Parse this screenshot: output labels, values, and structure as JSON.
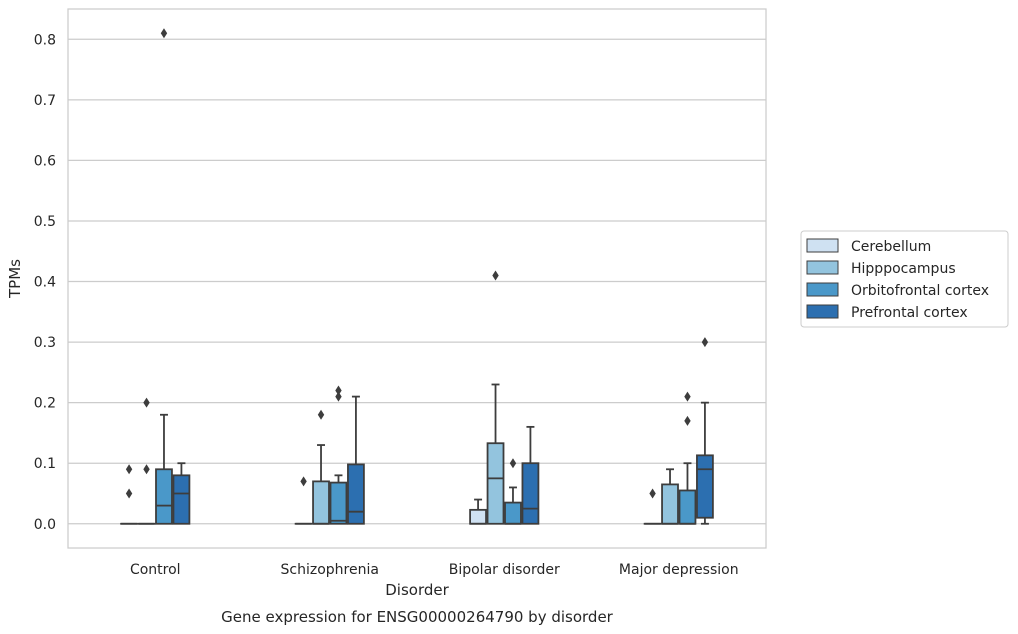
{
  "chart_data": {
    "type": "box",
    "xlabel": "Disorder",
    "ylabel": "TPMs",
    "caption": "Gene expression for ENSG00000264790 by disorder",
    "ylim": [
      -0.04,
      0.85
    ],
    "yticks": [
      "0.0",
      "0.1",
      "0.2",
      "0.3",
      "0.4",
      "0.5",
      "0.6",
      "0.7",
      "0.8"
    ],
    "grid": "horizontal",
    "legend_position": "right",
    "categories": [
      "Control",
      "Schizophrenia",
      "Bipolar disorder",
      "Major depression"
    ],
    "series": [
      {
        "name": "Cerebellum",
        "color": "#cfe1f2",
        "boxes": [
          {
            "min": 0,
            "q1": 0,
            "median": 0,
            "q3": 0,
            "max": 0,
            "outliers": [
              0.05,
              0.09
            ]
          },
          {
            "min": 0,
            "q1": 0,
            "median": 0,
            "q3": 0,
            "max": 0,
            "outliers": [
              0.07
            ]
          },
          {
            "min": 0,
            "q1": 0,
            "median": 0,
            "q3": 0.023,
            "max": 0.04,
            "outliers": []
          },
          {
            "min": 0,
            "q1": 0,
            "median": 0,
            "q3": 0,
            "max": 0,
            "outliers": [
              0.05
            ]
          }
        ]
      },
      {
        "name": "Hipppocampus",
        "color": "#93c4de",
        "boxes": [
          {
            "min": 0,
            "q1": 0,
            "median": 0,
            "q3": 0,
            "max": 0,
            "outliers": [
              0.09,
              0.2
            ]
          },
          {
            "min": 0,
            "q1": 0,
            "median": 0,
            "q3": 0.07,
            "max": 0.13,
            "outliers": [
              0.18
            ]
          },
          {
            "min": 0,
            "q1": 0,
            "median": 0.075,
            "q3": 0.133,
            "max": 0.23,
            "outliers": [
              0.41
            ]
          },
          {
            "min": 0,
            "q1": 0,
            "median": 0,
            "q3": 0.065,
            "max": 0.09,
            "outliers": []
          }
        ]
      },
      {
        "name": "Orbitofrontal cortex",
        "color": "#4a98c9",
        "boxes": [
          {
            "min": 0,
            "q1": 0,
            "median": 0.03,
            "q3": 0.09,
            "max": 0.18,
            "outliers": [
              0.81
            ]
          },
          {
            "min": 0,
            "q1": 0,
            "median": 0.005,
            "q3": 0.068,
            "max": 0.08,
            "outliers": [
              0.21,
              0.22
            ]
          },
          {
            "min": 0,
            "q1": 0,
            "median": 0,
            "q3": 0.035,
            "max": 0.06,
            "outliers": [
              0.1
            ]
          },
          {
            "min": 0,
            "q1": 0,
            "median": 0,
            "q3": 0.055,
            "max": 0.1,
            "outliers": [
              0.17,
              0.21
            ]
          }
        ]
      },
      {
        "name": "Prefrontal cortex",
        "color": "#2c6fb0",
        "boxes": [
          {
            "min": 0,
            "q1": 0,
            "median": 0.05,
            "q3": 0.08,
            "max": 0.1,
            "outliers": []
          },
          {
            "min": 0,
            "q1": 0,
            "median": 0.02,
            "q3": 0.098,
            "max": 0.21,
            "outliers": []
          },
          {
            "min": 0,
            "q1": 0,
            "median": 0.025,
            "q3": 0.1,
            "max": 0.16,
            "outliers": []
          },
          {
            "min": 0,
            "q1": 0.01,
            "median": 0.09,
            "q3": 0.113,
            "max": 0.2,
            "outliers": [
              0.3
            ]
          }
        ]
      }
    ]
  }
}
